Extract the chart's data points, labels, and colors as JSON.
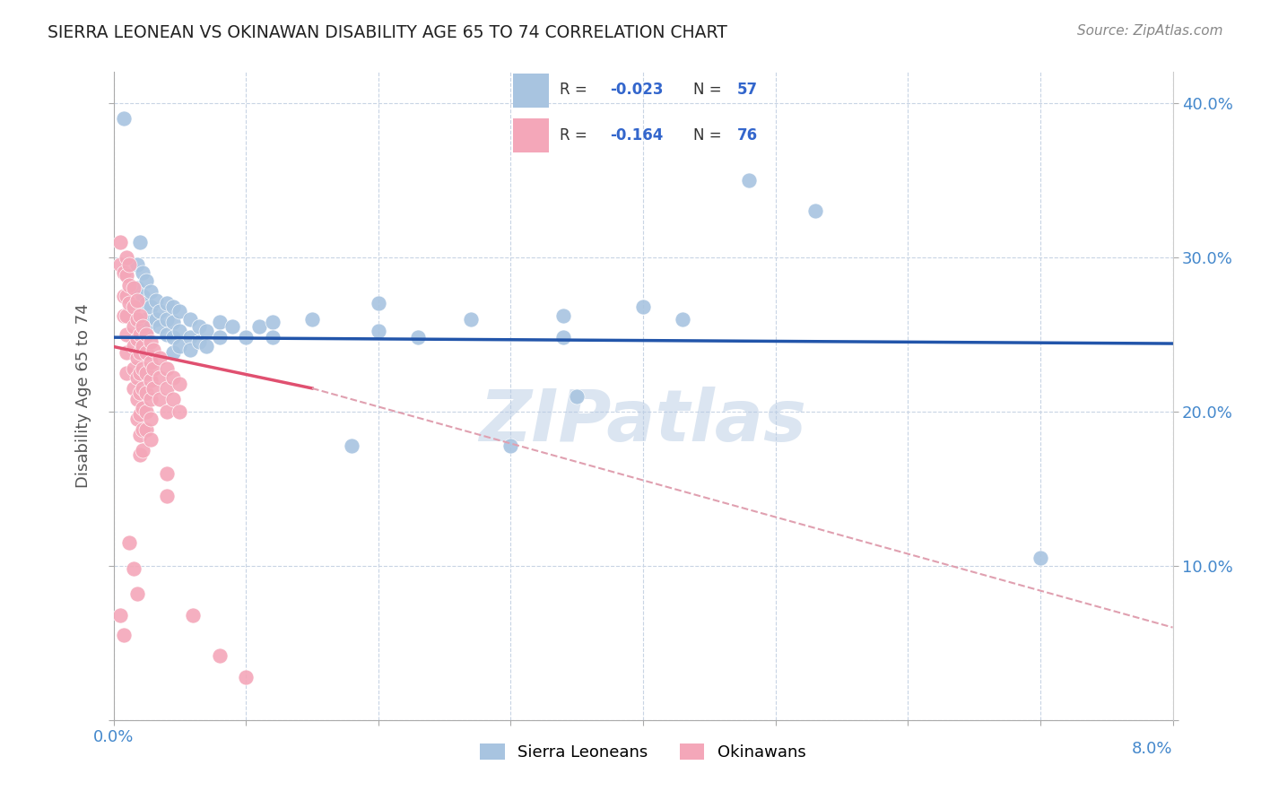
{
  "title": "SIERRA LEONEAN VS OKINAWAN DISABILITY AGE 65 TO 74 CORRELATION CHART",
  "source": "Source: ZipAtlas.com",
  "ylabel": "Disability Age 65 to 74",
  "xmin": 0.0,
  "xmax": 0.08,
  "ymin": 0.0,
  "ymax": 0.42,
  "sierra_color": "#a8c4e0",
  "okinawan_color": "#f4a7b9",
  "sierra_line_color": "#2255aa",
  "okinawan_line_color": "#e05070",
  "okinawan_dash_color": "#e0a0b0",
  "background_color": "#ffffff",
  "grid_color": "#c8d4e4",
  "watermark": "ZIPatlas",
  "sierra_points": [
    [
      0.0008,
      0.39
    ],
    [
      0.0018,
      0.295
    ],
    [
      0.0018,
      0.28
    ],
    [
      0.002,
      0.31
    ],
    [
      0.0022,
      0.29
    ],
    [
      0.0022,
      0.275
    ],
    [
      0.0025,
      0.285
    ],
    [
      0.0025,
      0.27
    ],
    [
      0.0025,
      0.26
    ],
    [
      0.0025,
      0.252
    ],
    [
      0.0028,
      0.278
    ],
    [
      0.0028,
      0.268
    ],
    [
      0.0028,
      0.258
    ],
    [
      0.0032,
      0.272
    ],
    [
      0.0032,
      0.26
    ],
    [
      0.0035,
      0.265
    ],
    [
      0.0035,
      0.255
    ],
    [
      0.004,
      0.27
    ],
    [
      0.004,
      0.26
    ],
    [
      0.004,
      0.25
    ],
    [
      0.0045,
      0.268
    ],
    [
      0.0045,
      0.258
    ],
    [
      0.0045,
      0.248
    ],
    [
      0.0045,
      0.238
    ],
    [
      0.005,
      0.265
    ],
    [
      0.005,
      0.252
    ],
    [
      0.005,
      0.242
    ],
    [
      0.0058,
      0.26
    ],
    [
      0.0058,
      0.248
    ],
    [
      0.0058,
      0.24
    ],
    [
      0.0065,
      0.255
    ],
    [
      0.0065,
      0.245
    ],
    [
      0.007,
      0.252
    ],
    [
      0.007,
      0.242
    ],
    [
      0.008,
      0.258
    ],
    [
      0.008,
      0.248
    ],
    [
      0.009,
      0.255
    ],
    [
      0.01,
      0.248
    ],
    [
      0.011,
      0.255
    ],
    [
      0.012,
      0.258
    ],
    [
      0.012,
      0.248
    ],
    [
      0.015,
      0.26
    ],
    [
      0.018,
      0.178
    ],
    [
      0.02,
      0.27
    ],
    [
      0.02,
      0.252
    ],
    [
      0.023,
      0.248
    ],
    [
      0.027,
      0.26
    ],
    [
      0.03,
      0.178
    ],
    [
      0.034,
      0.262
    ],
    [
      0.034,
      0.248
    ],
    [
      0.035,
      0.21
    ],
    [
      0.04,
      0.268
    ],
    [
      0.043,
      0.26
    ],
    [
      0.048,
      0.35
    ],
    [
      0.053,
      0.33
    ],
    [
      0.07,
      0.105
    ]
  ],
  "okinawan_points": [
    [
      0.0005,
      0.31
    ],
    [
      0.0005,
      0.295
    ],
    [
      0.0008,
      0.29
    ],
    [
      0.0008,
      0.275
    ],
    [
      0.0008,
      0.262
    ],
    [
      0.001,
      0.3
    ],
    [
      0.001,
      0.288
    ],
    [
      0.001,
      0.275
    ],
    [
      0.001,
      0.262
    ],
    [
      0.001,
      0.25
    ],
    [
      0.001,
      0.238
    ],
    [
      0.001,
      0.225
    ],
    [
      0.0012,
      0.295
    ],
    [
      0.0012,
      0.282
    ],
    [
      0.0012,
      0.27
    ],
    [
      0.0015,
      0.28
    ],
    [
      0.0015,
      0.268
    ],
    [
      0.0015,
      0.255
    ],
    [
      0.0015,
      0.242
    ],
    [
      0.0015,
      0.228
    ],
    [
      0.0015,
      0.215
    ],
    [
      0.0018,
      0.272
    ],
    [
      0.0018,
      0.26
    ],
    [
      0.0018,
      0.247
    ],
    [
      0.0018,
      0.235
    ],
    [
      0.0018,
      0.222
    ],
    [
      0.0018,
      0.208
    ],
    [
      0.0018,
      0.195
    ],
    [
      0.002,
      0.262
    ],
    [
      0.002,
      0.25
    ],
    [
      0.002,
      0.238
    ],
    [
      0.002,
      0.225
    ],
    [
      0.002,
      0.212
    ],
    [
      0.002,
      0.198
    ],
    [
      0.002,
      0.185
    ],
    [
      0.002,
      0.172
    ],
    [
      0.0022,
      0.255
    ],
    [
      0.0022,
      0.242
    ],
    [
      0.0022,
      0.228
    ],
    [
      0.0022,
      0.215
    ],
    [
      0.0022,
      0.202
    ],
    [
      0.0022,
      0.188
    ],
    [
      0.0022,
      0.175
    ],
    [
      0.0025,
      0.25
    ],
    [
      0.0025,
      0.238
    ],
    [
      0.0025,
      0.225
    ],
    [
      0.0025,
      0.212
    ],
    [
      0.0025,
      0.2
    ],
    [
      0.0025,
      0.188
    ],
    [
      0.0028,
      0.245
    ],
    [
      0.0028,
      0.232
    ],
    [
      0.0028,
      0.22
    ],
    [
      0.0028,
      0.208
    ],
    [
      0.0028,
      0.195
    ],
    [
      0.0028,
      0.182
    ],
    [
      0.003,
      0.24
    ],
    [
      0.003,
      0.228
    ],
    [
      0.003,
      0.215
    ],
    [
      0.0035,
      0.235
    ],
    [
      0.0035,
      0.222
    ],
    [
      0.0035,
      0.208
    ],
    [
      0.004,
      0.228
    ],
    [
      0.004,
      0.215
    ],
    [
      0.004,
      0.2
    ],
    [
      0.004,
      0.16
    ],
    [
      0.004,
      0.145
    ],
    [
      0.0045,
      0.222
    ],
    [
      0.0045,
      0.208
    ],
    [
      0.005,
      0.218
    ],
    [
      0.005,
      0.2
    ],
    [
      0.006,
      0.068
    ],
    [
      0.008,
      0.042
    ],
    [
      0.01,
      0.028
    ],
    [
      0.0005,
      0.068
    ],
    [
      0.0008,
      0.055
    ],
    [
      0.0012,
      0.115
    ],
    [
      0.0015,
      0.098
    ],
    [
      0.0018,
      0.082
    ]
  ],
  "sierra_trendline": [
    [
      0.0,
      0.248
    ],
    [
      0.08,
      0.244
    ]
  ],
  "okinawan_trendline_solid": [
    [
      0.0,
      0.242
    ],
    [
      0.015,
      0.215
    ]
  ],
  "okinawan_trendline_dash": [
    [
      0.015,
      0.215
    ],
    [
      0.08,
      0.06
    ]
  ]
}
